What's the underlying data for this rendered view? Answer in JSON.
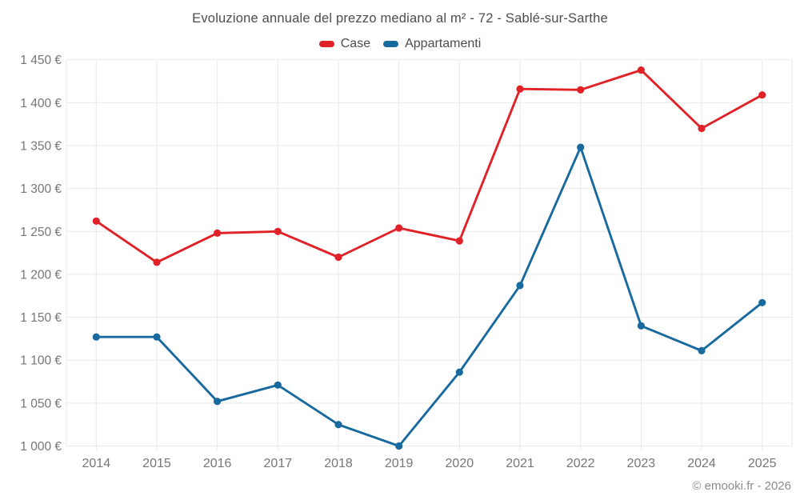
{
  "title": "Evoluzione annuale del prezzo mediano al m² - 72 - Sablé-sur-Sarthe",
  "footer": "© emooki.fr - 2026",
  "legend": {
    "items": [
      {
        "label": "Case",
        "color": "#e02127"
      },
      {
        "label": "Appartamenti",
        "color": "#186a9e"
      }
    ]
  },
  "colors": {
    "background": "#ffffff",
    "grid": "#e9e9e9",
    "axis_text": "#767676",
    "title_text": "#4c4c4c",
    "footer_text": "#8c8c8c",
    "case_red": "#e02127",
    "appartamenti_blue": "#186a9e"
  },
  "chart_data": {
    "type": "line",
    "title": "Evoluzione annuale del prezzo mediano al m² - 72 - Sablé-sur-Sarthe",
    "xlabel": "",
    "ylabel": "",
    "x": [
      "2014",
      "2015",
      "2016",
      "2017",
      "2018",
      "2019",
      "2020",
      "2021",
      "2022",
      "2023",
      "2024",
      "2025"
    ],
    "series": [
      {
        "name": "Case",
        "color": "#e02127",
        "values": [
          1262,
          1214,
          1248,
          1250,
          1220,
          1254,
          1239,
          1416,
          1415,
          1438,
          1370,
          1409
        ]
      },
      {
        "name": "Appartamenti",
        "color": "#186a9e",
        "values": [
          1127,
          1127,
          1052,
          1071,
          1025,
          1000,
          1086,
          1187,
          1348,
          1140,
          1111,
          1167
        ]
      }
    ],
    "ylim": [
      1000,
      1450
    ],
    "y_ticks": [
      1000,
      1050,
      1100,
      1150,
      1200,
      1250,
      1300,
      1350,
      1400,
      1450
    ],
    "y_tick_labels": [
      "1 000 €",
      "1 050 €",
      "1 100 €",
      "1 150 €",
      "1 200 €",
      "1 250 €",
      "1 300 €",
      "1 350 €",
      "1 400 €",
      "1 450 €"
    ],
    "grid": true,
    "legend_position": "top",
    "marker": "circle",
    "currency": "EUR"
  }
}
